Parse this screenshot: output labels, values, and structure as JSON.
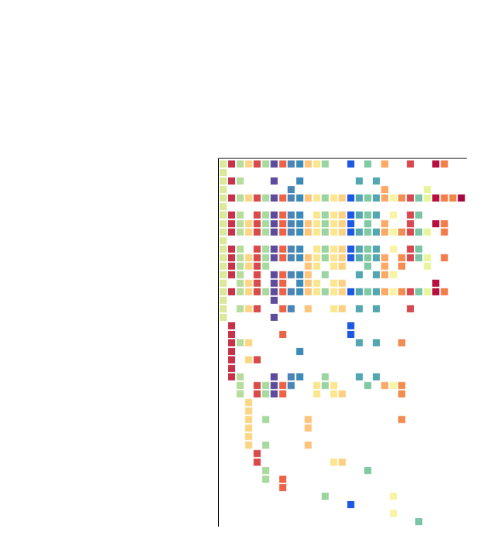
{
  "chart_data": {
    "type": "heatmap",
    "title": "",
    "xlabel": "",
    "ylabel": "",
    "grid": false,
    "legend": "none",
    "n_columns": 29,
    "n_rows": 43,
    "column_colors": [
      "#dce99a",
      "#c7314a",
      "#b7dc9b",
      "#fdd683",
      "#d94b4a",
      "#a8d99e",
      "#5e4b9c",
      "#ec6447",
      "#4b85b7",
      "#3c8ab8",
      "#fdc57c",
      "#fae690",
      "#9bd4a0",
      "#fee590",
      "#fed182",
      "#1d58e3",
      "#53a7b0",
      "#7fcaa4",
      "#53a7b0",
      "#fca964",
      "#f9f4a4",
      "#f28c51",
      "#d84850",
      "#79c5a6",
      "#e9f59c",
      "#b7103e",
      "#f47b4a",
      "#f08746",
      "#a6073f"
    ],
    "cells": [
      [
        0,
        0
      ],
      [
        0,
        1
      ],
      [
        0,
        2
      ],
      [
        0,
        3
      ],
      [
        0,
        4
      ],
      [
        0,
        5
      ],
      [
        0,
        6
      ],
      [
        0,
        7
      ],
      [
        0,
        8
      ],
      [
        0,
        9
      ],
      [
        0,
        10
      ],
      [
        0,
        11
      ],
      [
        0,
        12
      ],
      [
        0,
        15
      ],
      [
        0,
        17
      ],
      [
        0,
        19
      ],
      [
        0,
        22
      ],
      [
        0,
        25
      ],
      [
        0,
        26
      ],
      [
        1,
        0
      ],
      [
        2,
        0
      ],
      [
        2,
        1
      ],
      [
        2,
        2
      ],
      [
        2,
        6
      ],
      [
        2,
        9
      ],
      [
        2,
        16
      ],
      [
        2,
        18
      ],
      [
        3,
        0
      ],
      [
        3,
        8
      ],
      [
        3,
        19
      ],
      [
        3,
        24
      ],
      [
        4,
        0
      ],
      [
        4,
        1
      ],
      [
        4,
        2
      ],
      [
        4,
        3
      ],
      [
        4,
        4
      ],
      [
        4,
        5
      ],
      [
        4,
        6
      ],
      [
        4,
        7
      ],
      [
        4,
        8
      ],
      [
        4,
        9
      ],
      [
        4,
        10
      ],
      [
        4,
        11
      ],
      [
        4,
        12
      ],
      [
        4,
        13
      ],
      [
        4,
        14
      ],
      [
        4,
        15
      ],
      [
        4,
        16
      ],
      [
        4,
        17
      ],
      [
        4,
        18
      ],
      [
        4,
        19
      ],
      [
        4,
        20
      ],
      [
        4,
        21
      ],
      [
        4,
        22
      ],
      [
        4,
        23
      ],
      [
        4,
        24
      ],
      [
        4,
        25
      ],
      [
        4,
        26
      ],
      [
        4,
        27
      ],
      [
        4,
        28
      ],
      [
        5,
        0
      ],
      [
        6,
        0
      ],
      [
        6,
        1
      ],
      [
        6,
        2
      ],
      [
        6,
        4
      ],
      [
        6,
        5
      ],
      [
        6,
        6
      ],
      [
        6,
        7
      ],
      [
        6,
        8
      ],
      [
        6,
        9
      ],
      [
        6,
        11
      ],
      [
        6,
        12
      ],
      [
        6,
        13
      ],
      [
        6,
        14
      ],
      [
        6,
        15
      ],
      [
        6,
        16
      ],
      [
        6,
        17
      ],
      [
        6,
        18
      ],
      [
        6,
        20
      ],
      [
        6,
        22
      ],
      [
        6,
        23
      ],
      [
        7,
        0
      ],
      [
        7,
        1
      ],
      [
        7,
        2
      ],
      [
        7,
        3
      ],
      [
        7,
        4
      ],
      [
        7,
        5
      ],
      [
        7,
        6
      ],
      [
        7,
        7
      ],
      [
        7,
        8
      ],
      [
        7,
        9
      ],
      [
        7,
        10
      ],
      [
        7,
        11
      ],
      [
        7,
        12
      ],
      [
        7,
        13
      ],
      [
        7,
        14
      ],
      [
        7,
        15
      ],
      [
        7,
        17
      ],
      [
        7,
        19
      ],
      [
        7,
        22
      ],
      [
        7,
        25
      ],
      [
        7,
        26
      ],
      [
        8,
        0
      ],
      [
        8,
        1
      ],
      [
        8,
        2
      ],
      [
        8,
        3
      ],
      [
        8,
        4
      ],
      [
        8,
        5
      ],
      [
        8,
        6
      ],
      [
        8,
        7
      ],
      [
        8,
        8
      ],
      [
        8,
        9
      ],
      [
        8,
        10
      ],
      [
        8,
        11
      ],
      [
        8,
        12
      ],
      [
        8,
        13
      ],
      [
        8,
        14
      ],
      [
        8,
        15
      ],
      [
        8,
        16
      ],
      [
        8,
        17
      ],
      [
        8,
        18
      ],
      [
        8,
        19
      ],
      [
        8,
        20
      ],
      [
        8,
        21
      ],
      [
        8,
        22
      ],
      [
        8,
        23
      ],
      [
        8,
        24
      ],
      [
        8,
        26
      ],
      [
        9,
        0
      ],
      [
        10,
        0
      ],
      [
        10,
        1
      ],
      [
        10,
        2
      ],
      [
        10,
        4
      ],
      [
        10,
        5
      ],
      [
        10,
        6
      ],
      [
        10,
        7
      ],
      [
        10,
        8
      ],
      [
        10,
        9
      ],
      [
        10,
        11
      ],
      [
        10,
        12
      ],
      [
        10,
        13
      ],
      [
        10,
        14
      ],
      [
        10,
        15
      ],
      [
        10,
        16
      ],
      [
        10,
        17
      ],
      [
        10,
        18
      ],
      [
        10,
        20
      ],
      [
        10,
        22
      ],
      [
        10,
        23
      ],
      [
        11,
        0
      ],
      [
        11,
        1
      ],
      [
        11,
        2
      ],
      [
        11,
        3
      ],
      [
        11,
        4
      ],
      [
        11,
        5
      ],
      [
        11,
        6
      ],
      [
        11,
        7
      ],
      [
        11,
        8
      ],
      [
        11,
        9
      ],
      [
        11,
        10
      ],
      [
        11,
        11
      ],
      [
        11,
        12
      ],
      [
        11,
        13
      ],
      [
        11,
        14
      ],
      [
        11,
        15
      ],
      [
        11,
        16
      ],
      [
        11,
        17
      ],
      [
        11,
        18
      ],
      [
        11,
        19
      ],
      [
        11,
        21
      ],
      [
        11,
        22
      ],
      [
        11,
        23
      ],
      [
        11,
        24
      ],
      [
        11,
        26
      ],
      [
        12,
        0
      ],
      [
        12,
        1
      ],
      [
        12,
        2
      ],
      [
        12,
        3
      ],
      [
        12,
        4
      ],
      [
        12,
        5
      ],
      [
        12,
        10
      ],
      [
        12,
        11
      ],
      [
        12,
        13
      ],
      [
        12,
        14
      ],
      [
        12,
        17
      ],
      [
        12,
        19
      ],
      [
        12,
        21
      ],
      [
        12,
        24
      ],
      [
        13,
        0
      ],
      [
        13,
        1
      ],
      [
        13,
        2
      ],
      [
        13,
        4
      ],
      [
        13,
        6
      ],
      [
        13,
        7
      ],
      [
        13,
        8
      ],
      [
        13,
        9
      ],
      [
        13,
        10
      ],
      [
        13,
        12
      ],
      [
        13,
        16
      ],
      [
        13,
        18
      ],
      [
        13,
        19
      ],
      [
        13,
        20
      ],
      [
        14,
        0
      ],
      [
        14,
        2
      ],
      [
        14,
        3
      ],
      [
        14,
        4
      ],
      [
        14,
        6
      ],
      [
        14,
        7
      ],
      [
        14,
        9
      ],
      [
        14,
        10
      ],
      [
        14,
        11
      ],
      [
        14,
        13
      ],
      [
        14,
        14
      ],
      [
        14,
        25
      ],
      [
        15,
        0
      ],
      [
        15,
        1
      ],
      [
        15,
        2
      ],
      [
        15,
        3
      ],
      [
        15,
        4
      ],
      [
        15,
        5
      ],
      [
        15,
        6
      ],
      [
        15,
        7
      ],
      [
        15,
        8
      ],
      [
        15,
        9
      ],
      [
        15,
        10
      ],
      [
        15,
        11
      ],
      [
        15,
        12
      ],
      [
        15,
        13
      ],
      [
        15,
        14
      ],
      [
        15,
        15
      ],
      [
        15,
        16
      ],
      [
        15,
        17
      ],
      [
        15,
        18
      ],
      [
        15,
        19
      ],
      [
        15,
        20
      ],
      [
        15,
        21
      ],
      [
        15,
        22
      ],
      [
        15,
        23
      ],
      [
        15,
        24
      ],
      [
        15,
        25
      ],
      [
        15,
        26
      ],
      [
        16,
        0
      ],
      [
        16,
        6
      ],
      [
        17,
        0
      ],
      [
        17,
        2
      ],
      [
        17,
        3
      ],
      [
        17,
        4
      ],
      [
        17,
        7
      ],
      [
        17,
        8
      ],
      [
        17,
        10
      ],
      [
        17,
        13
      ],
      [
        17,
        14
      ],
      [
        17,
        16
      ],
      [
        17,
        18
      ],
      [
        17,
        22
      ],
      [
        18,
        0
      ],
      [
        18,
        6
      ],
      [
        19,
        1
      ],
      [
        19,
        15
      ],
      [
        20,
        1
      ],
      [
        20,
        7
      ],
      [
        20,
        15
      ],
      [
        21,
        1
      ],
      [
        21,
        2
      ],
      [
        21,
        3
      ],
      [
        21,
        16
      ],
      [
        21,
        18
      ],
      [
        21,
        21
      ],
      [
        22,
        1
      ],
      [
        22,
        9
      ],
      [
        23,
        1
      ],
      [
        23,
        3
      ],
      [
        23,
        4
      ],
      [
        24,
        1
      ],
      [
        25,
        1
      ],
      [
        25,
        2
      ],
      [
        25,
        6
      ],
      [
        25,
        8
      ],
      [
        25,
        9
      ],
      [
        25,
        12
      ],
      [
        25,
        16
      ],
      [
        25,
        18
      ],
      [
        26,
        2
      ],
      [
        26,
        4
      ],
      [
        26,
        5
      ],
      [
        26,
        6
      ],
      [
        26,
        7
      ],
      [
        26,
        8
      ],
      [
        26,
        11
      ],
      [
        26,
        12
      ],
      [
        26,
        13
      ],
      [
        26,
        17
      ],
      [
        26,
        19
      ],
      [
        26,
        20
      ],
      [
        26,
        21
      ],
      [
        27,
        2
      ],
      [
        27,
        4
      ],
      [
        27,
        5
      ],
      [
        27,
        6
      ],
      [
        27,
        7
      ],
      [
        27,
        11
      ],
      [
        27,
        13
      ],
      [
        27,
        14
      ],
      [
        27,
        21
      ],
      [
        28,
        3
      ],
      [
        29,
        3
      ],
      [
        30,
        3
      ],
      [
        30,
        5
      ],
      [
        30,
        10
      ],
      [
        30,
        21
      ],
      [
        31,
        3
      ],
      [
        31,
        10
      ],
      [
        32,
        3
      ],
      [
        33,
        3
      ],
      [
        33,
        5
      ],
      [
        33,
        10
      ],
      [
        34,
        4
      ],
      [
        35,
        4
      ],
      [
        35,
        13
      ],
      [
        35,
        14
      ],
      [
        36,
        5
      ],
      [
        36,
        17
      ],
      [
        37,
        5
      ],
      [
        37,
        7
      ],
      [
        38,
        7
      ],
      [
        39,
        12
      ],
      [
        39,
        20
      ],
      [
        40,
        15
      ],
      [
        41,
        20
      ],
      [
        42,
        23
      ]
    ]
  }
}
